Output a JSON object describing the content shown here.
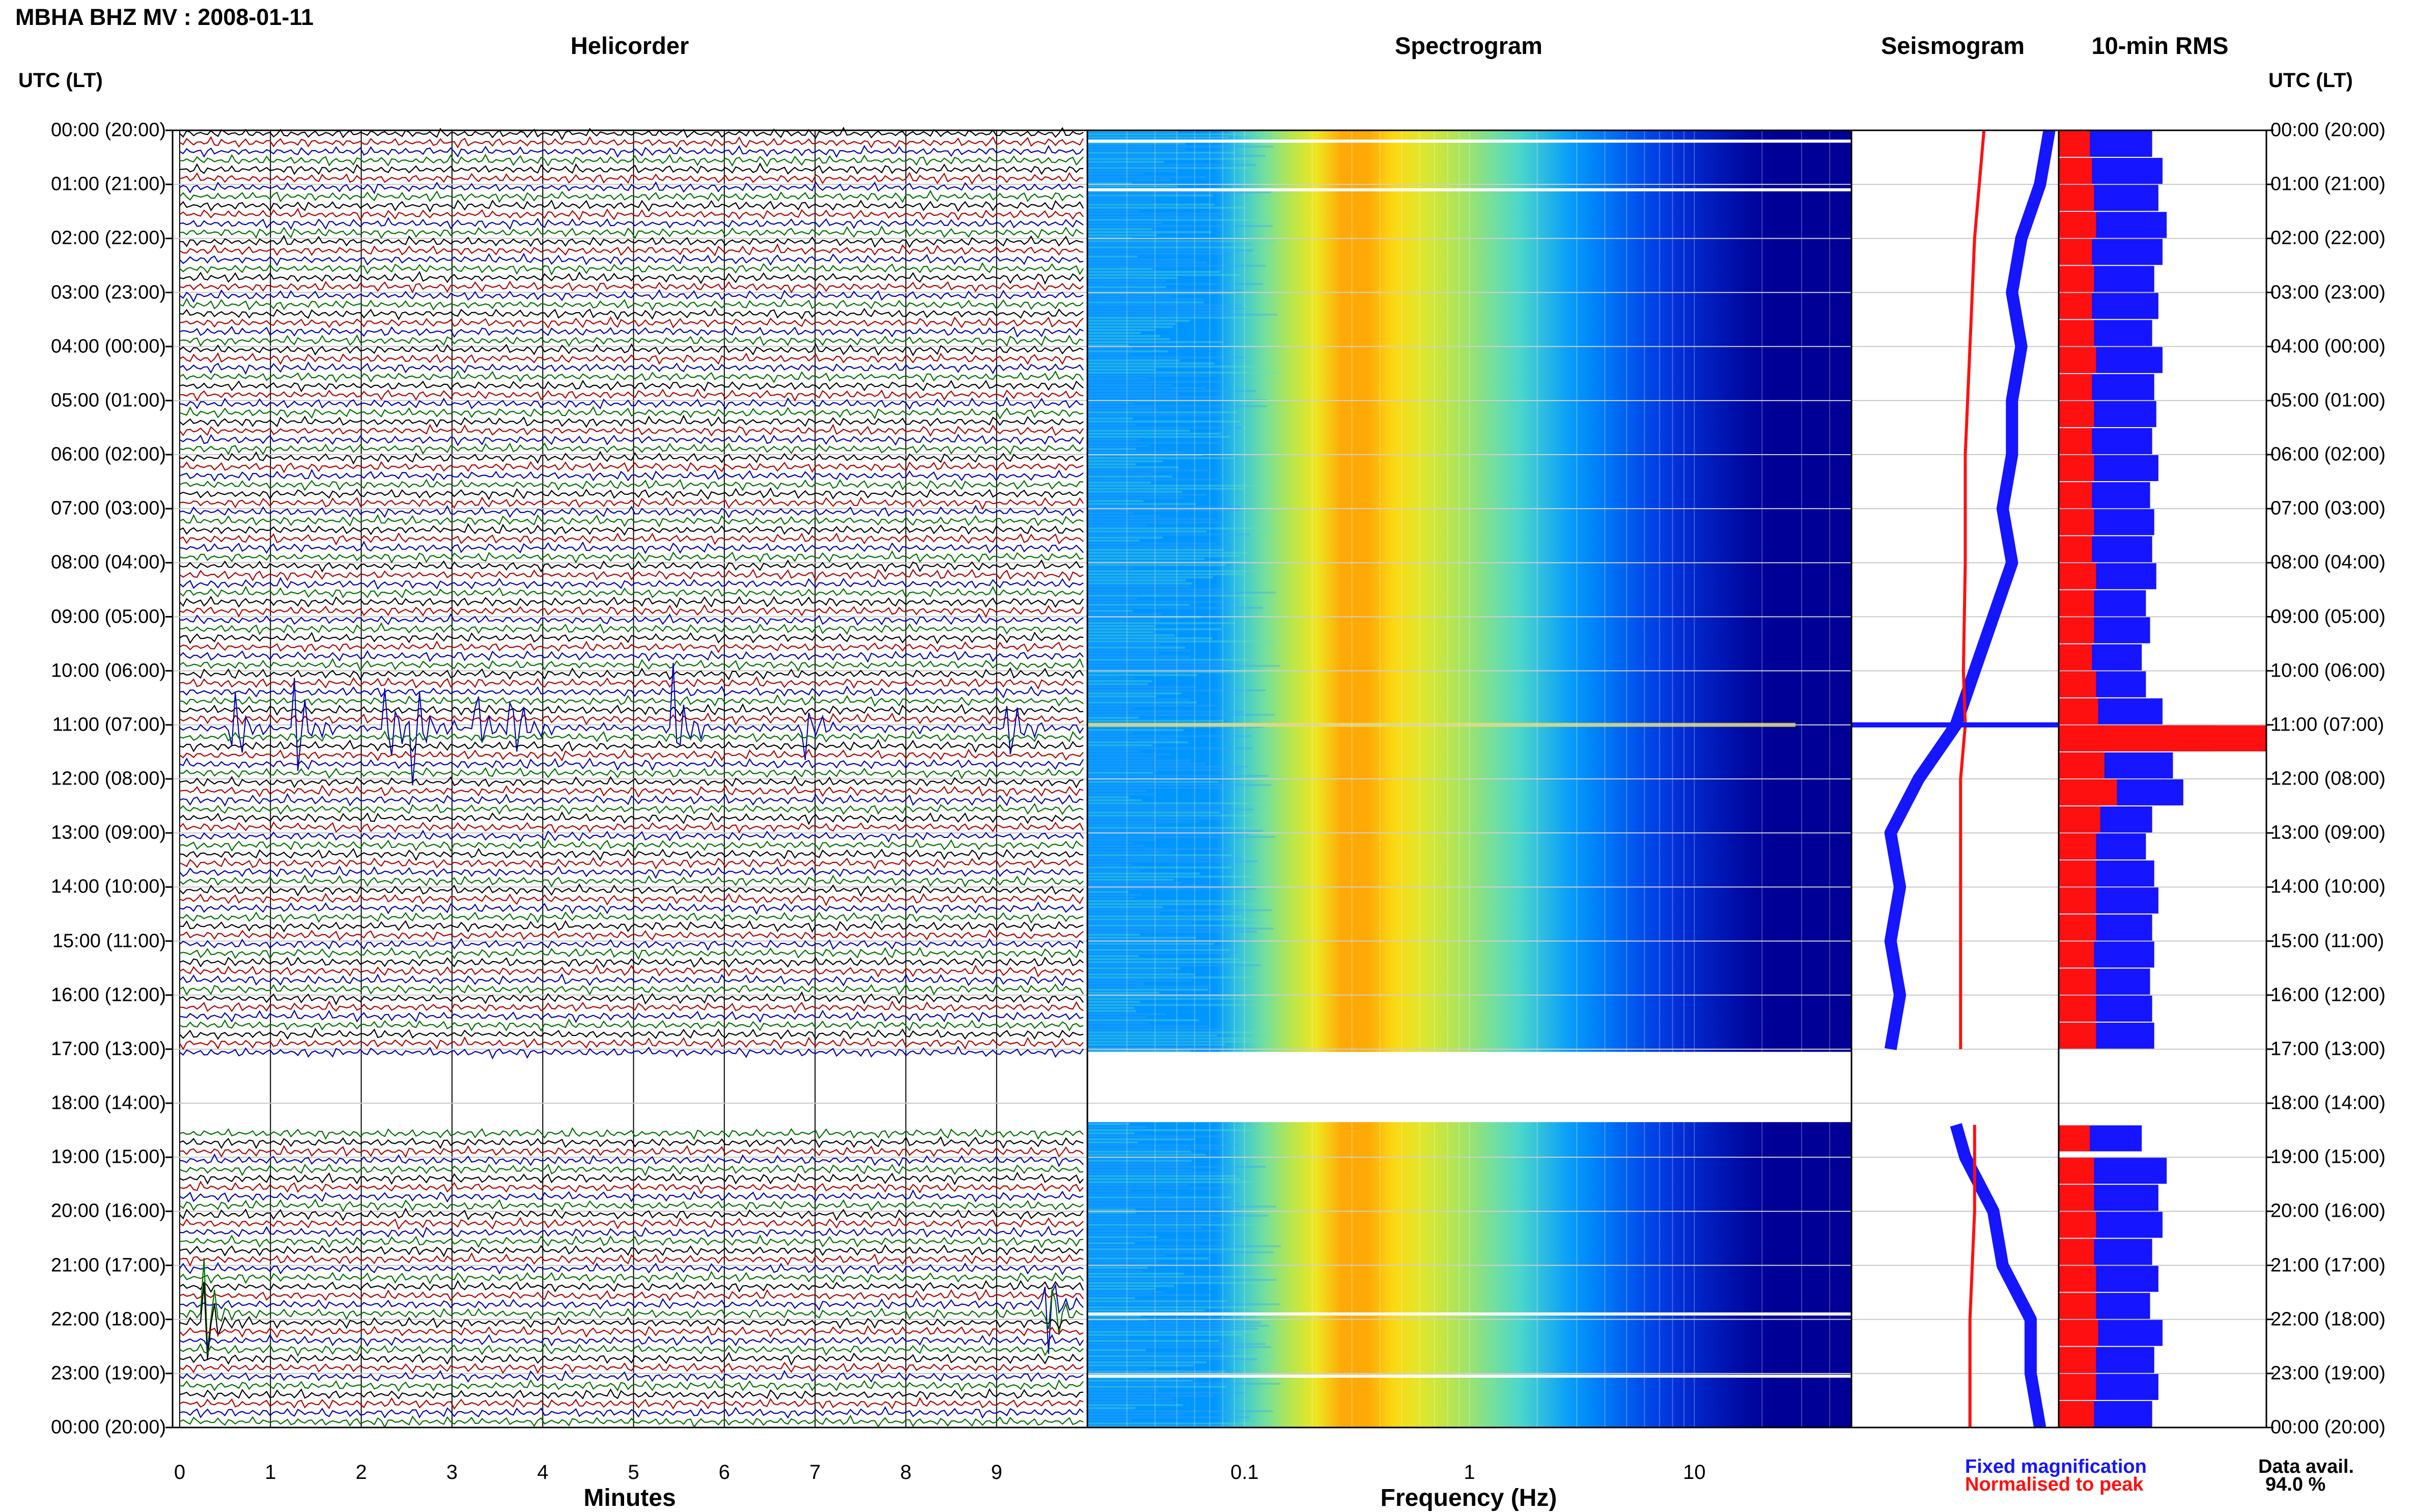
{
  "header": {
    "station_title": "MBHA BHZ MV : 2008-01-11",
    "panels": {
      "helicorder": "Helicorder",
      "spectrogram": "Spectrogram",
      "seismogram": "Seismogram",
      "rms": "10-min RMS"
    },
    "timezone_left": "UTC (LT)",
    "timezone_right": "UTC (LT)"
  },
  "footer": {
    "legend_fixed": "Fixed magnification",
    "legend_normalised": "Normalised to peak",
    "data_avail_label": "Data avail.",
    "data_avail_value": "94.0 %"
  },
  "colors": {
    "fixed": "#1515ff",
    "normalised": "#ff1010",
    "trace_cycle": [
      "#000000",
      "#b00000",
      "#0000b0",
      "#007000"
    ],
    "grid": "#c8c8c8",
    "background": "#ffffff"
  },
  "chart_data": [
    {
      "type": "line",
      "title": "Helicorder",
      "xlabel": "Minutes",
      "ylabel": "UTC (LT)",
      "xlim": [
        0,
        10
      ],
      "x_ticks": [
        "0",
        "1",
        "2",
        "3",
        "4",
        "5",
        "6",
        "7",
        "8",
        "9"
      ],
      "hour_labels": [
        "00:00 (20:00)",
        "01:00 (21:00)",
        "02:00 (22:00)",
        "03:00 (23:00)",
        "04:00 (00:00)",
        "05:00 (01:00)",
        "06:00 (02:00)",
        "07:00 (03:00)",
        "08:00 (04:00)",
        "09:00 (05:00)",
        "10:00 (06:00)",
        "11:00 (07:00)",
        "12:00 (08:00)",
        "13:00 (09:00)",
        "14:00 (10:00)",
        "15:00 (11:00)",
        "16:00 (12:00)",
        "17:00 (13:00)",
        "18:00 (14:00)",
        "19:00 (15:00)",
        "20:00 (16:00)",
        "21:00 (17:00)",
        "22:00 (18:00)",
        "23:00 (19:00)",
        "00:00 (20:00)"
      ],
      "ylim_hours": [
        0,
        24
      ],
      "trace_interval_minutes": 10,
      "data_gap_hours": [
        17.05,
        18.35
      ],
      "events": [
        {
          "hour": 11.0,
          "minute": 0.6
        },
        {
          "hour": 11.0,
          "minute": 1.3
        },
        {
          "hour": 11.0,
          "minute": 2.3
        },
        {
          "hour": 11.0,
          "minute": 2.6
        },
        {
          "hour": 11.0,
          "minute": 3.3
        },
        {
          "hour": 11.0,
          "minute": 3.7
        },
        {
          "hour": 11.0,
          "minute": 5.5
        },
        {
          "hour": 11.0,
          "minute": 6.9
        },
        {
          "hour": 11.0,
          "minute": 9.2
        },
        {
          "hour": 21.9,
          "minute": 0.3
        },
        {
          "hour": 21.8,
          "minute": 9.6
        }
      ]
    },
    {
      "type": "heatmap",
      "title": "Spectrogram",
      "xlabel": "Frequency (Hz)",
      "x_scale": "log",
      "xlim": [
        0.02,
        50
      ],
      "x_ticks": [
        "0.1",
        "1",
        "10"
      ],
      "ylim_hours": [
        0,
        24
      ],
      "peak_frequency_band_hz": [
        0.18,
        0.5
      ],
      "data_gap_hours": [
        17.05,
        18.35
      ]
    },
    {
      "type": "line",
      "title": "Seismogram",
      "series": [
        {
          "name": "Fixed magnification",
          "color": "#1515ff",
          "hours": [
            0,
            1,
            2,
            3,
            4,
            5,
            6,
            7,
            8,
            9,
            10,
            11,
            12,
            13,
            14,
            15,
            16,
            17,
            18.4,
            19,
            20,
            21,
            22,
            23,
            24
          ],
          "values": [
            0.9,
            0.8,
            0.6,
            0.5,
            0.6,
            0.5,
            0.5,
            0.4,
            0.5,
            0.3,
            0.1,
            -0.1,
            -0.5,
            -0.8,
            -0.7,
            -0.8,
            -0.7,
            -0.8,
            -0.1,
            0.0,
            0.3,
            0.4,
            0.7,
            0.7,
            0.8
          ]
        },
        {
          "name": "Normalised to peak",
          "color": "#ff1010",
          "hours": [
            0,
            2,
            4,
            6,
            8,
            10,
            11,
            12,
            14,
            16,
            17,
            18.4,
            20,
            22,
            24
          ],
          "values": [
            0.2,
            0.1,
            0.05,
            0.0,
            0.0,
            -0.02,
            0.0,
            -0.05,
            -0.05,
            -0.05,
            -0.05,
            0.1,
            0.1,
            0.05,
            0.05
          ]
        }
      ],
      "ylim_hours": [
        0,
        24
      ]
    },
    {
      "type": "bar",
      "title": "10-min RMS",
      "orientation": "horizontal",
      "ylim_hours": [
        0,
        24
      ],
      "xlim": [
        0,
        1
      ],
      "series": [
        {
          "name": "Fixed magnification",
          "color": "#1515ff",
          "hours": [
            0.0,
            0.5,
            1.0,
            1.5,
            2.0,
            2.5,
            3.0,
            3.5,
            4.0,
            4.5,
            5.0,
            5.5,
            6.0,
            6.5,
            7.0,
            7.5,
            8.0,
            8.5,
            9.0,
            9.5,
            10.0,
            10.5,
            11.0,
            11.5,
            12.0,
            12.5,
            13.0,
            13.5,
            14.0,
            14.5,
            15.0,
            15.5,
            16.0,
            16.5,
            18.4,
            19.0,
            19.5,
            20.0,
            20.5,
            21.0,
            21.5,
            22.0,
            22.5,
            23.0,
            23.5
          ],
          "values": [
            0.45,
            0.5,
            0.48,
            0.52,
            0.5,
            0.46,
            0.48,
            0.45,
            0.5,
            0.46,
            0.47,
            0.45,
            0.48,
            0.44,
            0.46,
            0.45,
            0.47,
            0.42,
            0.44,
            0.4,
            0.42,
            0.5,
            0.75,
            0.55,
            0.6,
            0.45,
            0.42,
            0.46,
            0.48,
            0.45,
            0.46,
            0.44,
            0.45,
            0.46,
            0.4,
            0.52,
            0.48,
            0.5,
            0.45,
            0.48,
            0.44,
            0.5,
            0.46,
            0.48,
            0.45
          ]
        },
        {
          "name": "Normalised to peak",
          "color": "#ff1010",
          "hours": [
            0.0,
            0.5,
            1.0,
            1.5,
            2.0,
            2.5,
            3.0,
            3.5,
            4.0,
            4.5,
            5.0,
            5.5,
            6.0,
            6.5,
            7.0,
            7.5,
            8.0,
            8.5,
            9.0,
            9.5,
            10.0,
            10.5,
            11.0,
            11.5,
            12.0,
            12.5,
            13.0,
            13.5,
            14.0,
            14.5,
            15.0,
            15.5,
            16.0,
            16.5,
            18.4,
            19.0,
            19.5,
            20.0,
            20.5,
            21.0,
            21.5,
            22.0,
            22.5,
            23.0,
            23.5
          ],
          "values": [
            0.15,
            0.16,
            0.17,
            0.18,
            0.16,
            0.17,
            0.16,
            0.17,
            0.18,
            0.16,
            0.17,
            0.16,
            0.17,
            0.16,
            0.17,
            0.16,
            0.18,
            0.17,
            0.17,
            0.16,
            0.18,
            0.19,
            1.0,
            0.22,
            0.28,
            0.2,
            0.18,
            0.18,
            0.18,
            0.18,
            0.17,
            0.18,
            0.18,
            0.18,
            0.15,
            0.17,
            0.17,
            0.18,
            0.17,
            0.18,
            0.18,
            0.19,
            0.18,
            0.18,
            0.17
          ]
        }
      ]
    }
  ]
}
